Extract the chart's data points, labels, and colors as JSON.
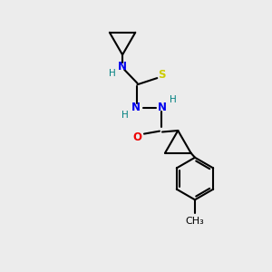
{
  "bg_color": "#ececec",
  "line_color": "#000000",
  "N_color": "#0000ee",
  "O_color": "#ee0000",
  "S_color": "#cccc00",
  "H_color": "#008080",
  "line_width": 1.5,
  "font_size": 8.5,
  "fig_size": [
    3.0,
    3.0
  ],
  "dpi": 100,
  "xlim": [
    0,
    10
  ],
  "ylim": [
    0,
    10
  ]
}
